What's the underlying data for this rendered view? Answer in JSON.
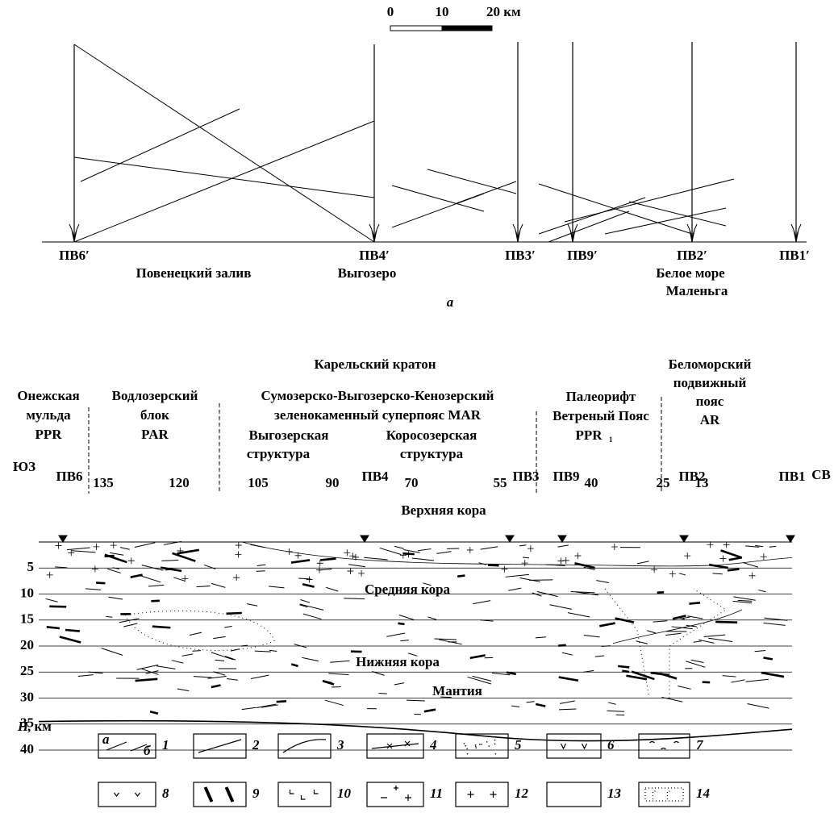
{
  "scale_bar": {
    "labels": [
      "0",
      "10",
      "20 км"
    ]
  },
  "panel_a": {
    "stations": [
      "ПВ6′",
      "ПВ4′",
      "ПВ3′",
      "ПВ9′",
      "ПВ2′",
      "ПВ1′"
    ],
    "places": [
      "Повенецкий залив",
      "Выгозеро",
      "Белое море",
      "Маленьга"
    ],
    "letter": "а"
  },
  "panel_b": {
    "title": "Карельский кратон",
    "regions": [
      [
        "Онежская",
        "мульда",
        "PPR"
      ],
      [
        "Водлозерский",
        "блок",
        "PAR"
      ],
      [
        "Сумозерско-Выгозерско-Кенозерский",
        "зеленокаменный суперпояс MAR"
      ],
      [
        "Выгозерская",
        "структура"
      ],
      [
        "Коросозерская",
        "структура"
      ],
      [
        "Палеорифт",
        "Ветреный Пояс",
        "PPR",
        "1"
      ],
      [
        "Беломорский",
        "подвижный",
        "пояс",
        "AR"
      ]
    ],
    "sides": [
      "ЮЗ",
      "СВ"
    ],
    "stations": [
      "ПВ6",
      "ПВ4",
      "ПВ3",
      "ПВ9",
      "ПВ2",
      "ПВ1"
    ],
    "distances": [
      "135",
      "120",
      "105",
      "90",
      "70",
      "55",
      "40",
      "25",
      "13"
    ],
    "layers": [
      "Верхняя кора",
      "Средняя кора",
      "Нижняя кора",
      "Мантия"
    ],
    "depth_ticks": [
      "5",
      "10",
      "15",
      "20",
      "25",
      "30",
      "35",
      "40"
    ],
    "depth_axis": [
      "H",
      ", км"
    ],
    "legend": {
      "sub": [
        "а",
        "б"
      ],
      "numbers": [
        "1",
        "2",
        "3",
        "4",
        "5",
        "6",
        "7",
        "8",
        "9",
        "10",
        "11",
        "12",
        "13",
        "14"
      ]
    }
  }
}
